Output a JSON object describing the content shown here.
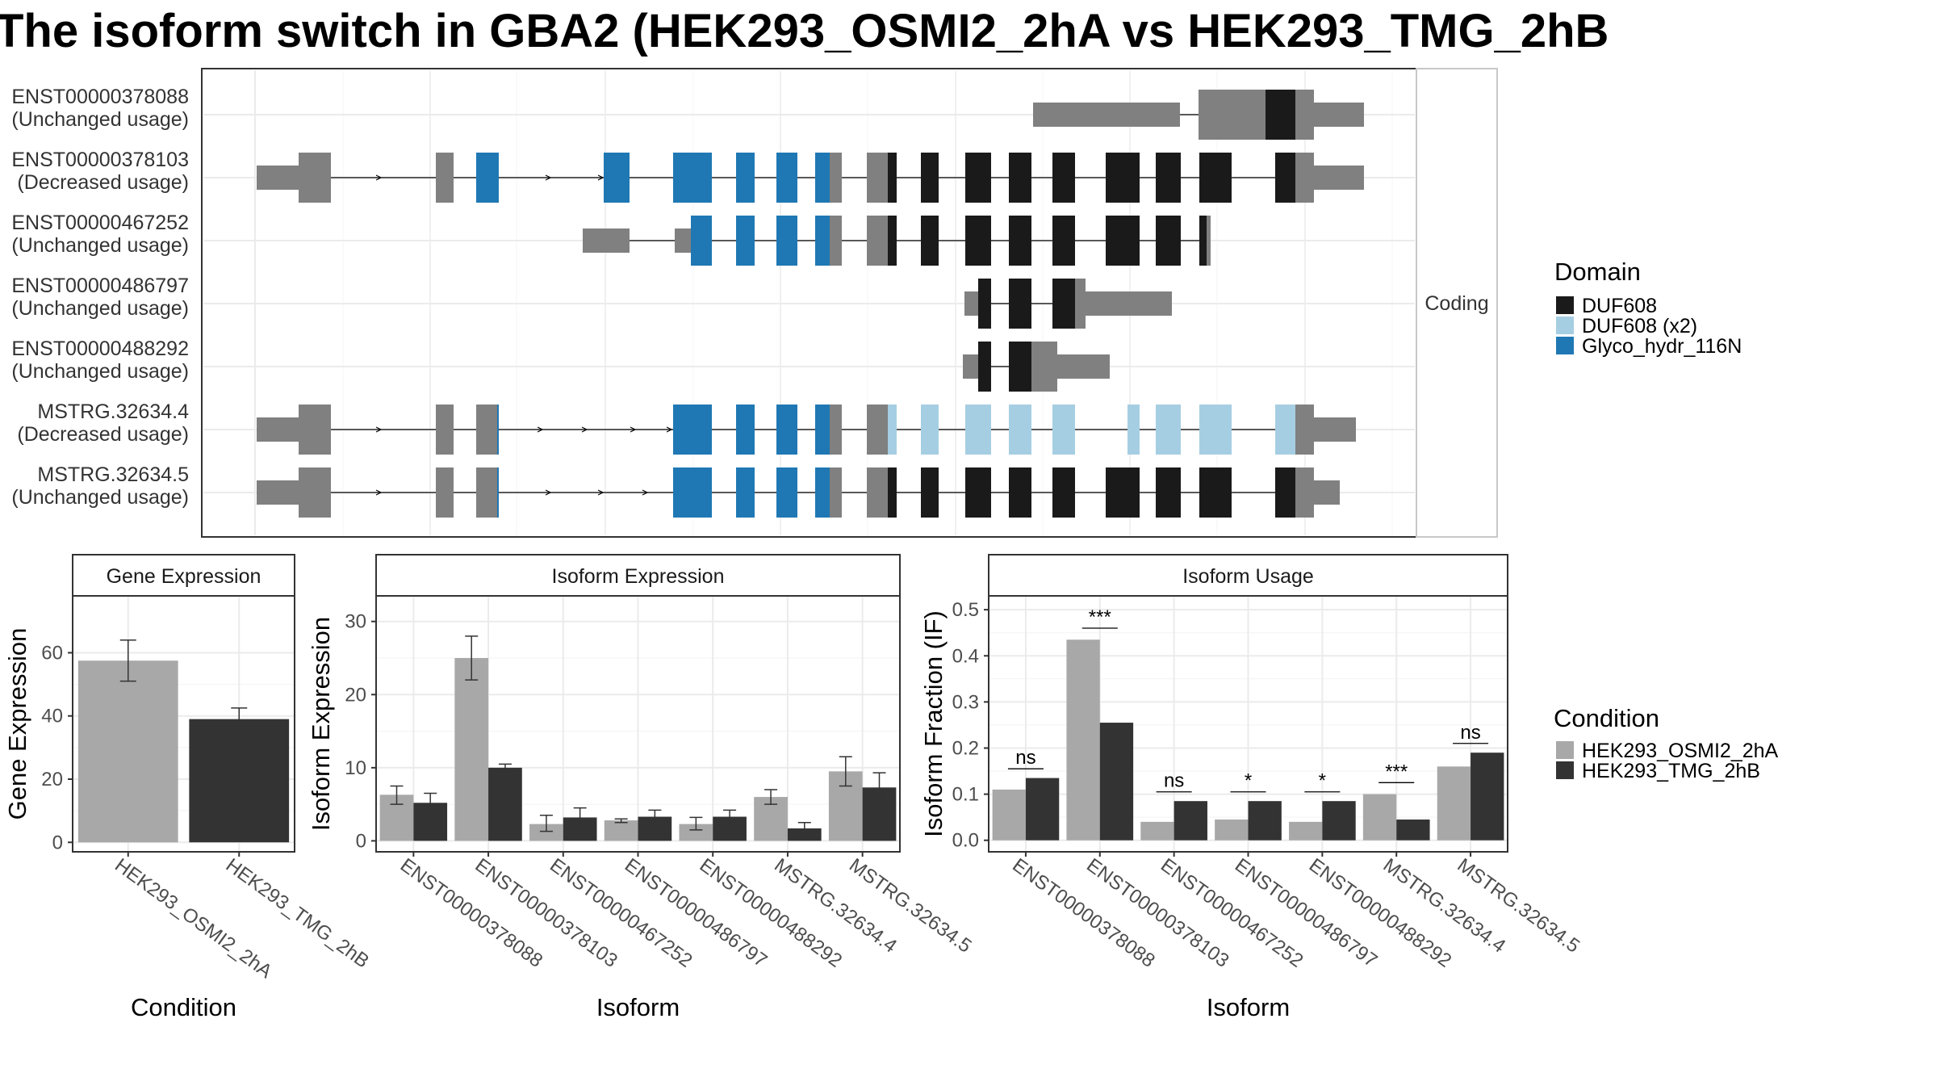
{
  "title": "The isoform switch in GBA2 (HEK293_OSMI2_2hA vs HEK293_TMG_2hB",
  "colors": {
    "utr": "#808080",
    "DUF608": "#1a1a1a",
    "DUF608 (x2)": "#a6cee3",
    "Glyco_hydr_116N": "#1f78b4",
    "cond_A": "#a8a8a8",
    "cond_B": "#333333"
  },
  "structure_panel": {
    "strip_label": "Coding",
    "transcripts": [
      {
        "id": "ENST00000378088",
        "usage": "(Unchanged usage)"
      },
      {
        "id": "ENST00000378103",
        "usage": "(Decreased usage)"
      },
      {
        "id": "ENST00000467252",
        "usage": "(Unchanged usage)"
      },
      {
        "id": "ENST00000486797",
        "usage": "(Unchanged usage)"
      },
      {
        "id": "ENST00000488292",
        "usage": "(Unchanged usage)"
      },
      {
        "id": "MSTRG.32634.4",
        "usage": "(Decreased usage)"
      },
      {
        "id": "MSTRG.32634.5",
        "usage": "(Unchanged usage)"
      }
    ]
  },
  "domain_legend": {
    "title": "Domain",
    "items": [
      "DUF608",
      "DUF608 (x2)",
      "Glyco_hydr_116N"
    ]
  },
  "condition_legend": {
    "title": "Condition",
    "items": [
      "HEK293_OSMI2_2hA",
      "HEK293_TMG_2hB"
    ]
  },
  "chart_data": [
    {
      "type": "bar",
      "title": "Gene Expression",
      "xlabel": "Condition",
      "ylabel": "Gene Expression",
      "categories": [
        "HEK293_OSMI2_2hA",
        "HEK293_TMG_2hB"
      ],
      "values": [
        57.5,
        39
      ],
      "errors": [
        [
          51,
          64
        ],
        [
          35.5,
          42.5
        ]
      ],
      "ylim": [
        -3,
        78
      ],
      "yticks": [
        0,
        20,
        40,
        60
      ],
      "grid": true
    },
    {
      "type": "bar",
      "title": "Isoform Expression",
      "xlabel": "Isoform",
      "ylabel": "Isoform Expression",
      "categories": [
        "ENST00000378088",
        "ENST00000378103",
        "ENST00000467252",
        "ENST00000486797",
        "ENST00000488292",
        "MSTRG.32634.4",
        "MSTRG.32634.5"
      ],
      "series": [
        {
          "name": "HEK293_OSMI2_2hA",
          "values": [
            6.3,
            25,
            2.3,
            2.8,
            2.3,
            6,
            9.5
          ],
          "errors": [
            [
              5,
              7.5
            ],
            [
              22,
              28
            ],
            [
              1.3,
              3.5
            ],
            [
              2.5,
              3
            ],
            [
              1.5,
              3.2
            ],
            [
              5,
              7
            ],
            [
              7.5,
              11.5
            ]
          ]
        },
        {
          "name": "HEK293_TMG_2hB",
          "values": [
            5.2,
            10,
            3.2,
            3.3,
            3.3,
            1.7,
            7.3
          ],
          "errors": [
            [
              4,
              6.5
            ],
            [
              9.5,
              10.5
            ],
            [
              2,
              4.5
            ],
            [
              2.5,
              4.2
            ],
            [
              2.5,
              4.2
            ],
            [
              1,
              2.5
            ],
            [
              5.5,
              9.3
            ]
          ]
        }
      ],
      "ylim": [
        -1.5,
        33.5
      ],
      "yticks": [
        0,
        10,
        20,
        30
      ],
      "grid": true
    },
    {
      "type": "bar",
      "title": "Isoform Usage",
      "xlabel": "Isoform",
      "ylabel": "Isoform Fraction (IF)",
      "categories": [
        "ENST00000378088",
        "ENST00000378103",
        "ENST00000467252",
        "ENST00000486797",
        "ENST00000488292",
        "MSTRG.32634.4",
        "MSTRG.32634.5"
      ],
      "series": [
        {
          "name": "HEK293_OSMI2_2hA",
          "values": [
            0.11,
            0.435,
            0.04,
            0.045,
            0.04,
            0.1,
            0.16
          ]
        },
        {
          "name": "HEK293_TMG_2hB",
          "values": [
            0.135,
            0.255,
            0.085,
            0.085,
            0.085,
            0.045,
            0.19
          ]
        }
      ],
      "significance": [
        {
          "label": "ns",
          "y": 0.155
        },
        {
          "label": "***",
          "y": 0.46
        },
        {
          "label": "ns",
          "y": 0.105
        },
        {
          "label": "*",
          "y": 0.105
        },
        {
          "label": "*",
          "y": 0.105
        },
        {
          "label": "***",
          "y": 0.125
        },
        {
          "label": "ns",
          "y": 0.21
        }
      ],
      "ylim": [
        -0.025,
        0.53
      ],
      "yticks": [
        0.0,
        0.1,
        0.2,
        0.3,
        0.4,
        0.5
      ],
      "ytick_labels": [
        "0.0",
        "0.1",
        "0.2",
        "0.3",
        "0.4",
        "0.5"
      ],
      "grid": true
    }
  ]
}
